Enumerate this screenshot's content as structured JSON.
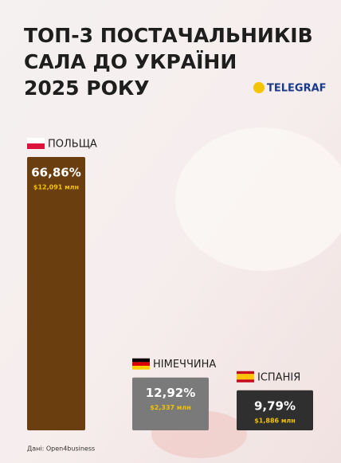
{
  "chart_data": {
    "type": "bar",
    "title_lines": [
      "ТОП-3 ПОСТАЧАЛЬНИКІВ",
      "САЛА ДО УКРАЇНИ",
      "2025 РОКУ"
    ],
    "brand": "TELEGRAF",
    "source": "Дані: Open4business",
    "categories": [
      "ПОЛЬЩА",
      "НІМЕЧЧИНА",
      "ІСПАНІЯ"
    ],
    "values": [
      66.86,
      12.92,
      9.79
    ],
    "value_labels": [
      "66,86%",
      "12,92%",
      "9,79%"
    ],
    "amounts": [
      12.091,
      2.337,
      1.886
    ],
    "amount_labels": [
      "$12,091 млн",
      "$2,337 млн",
      "$1,886 млн"
    ],
    "colors": [
      "#6a3e0f",
      "#7a7a7a",
      "#2f2f2f"
    ]
  }
}
